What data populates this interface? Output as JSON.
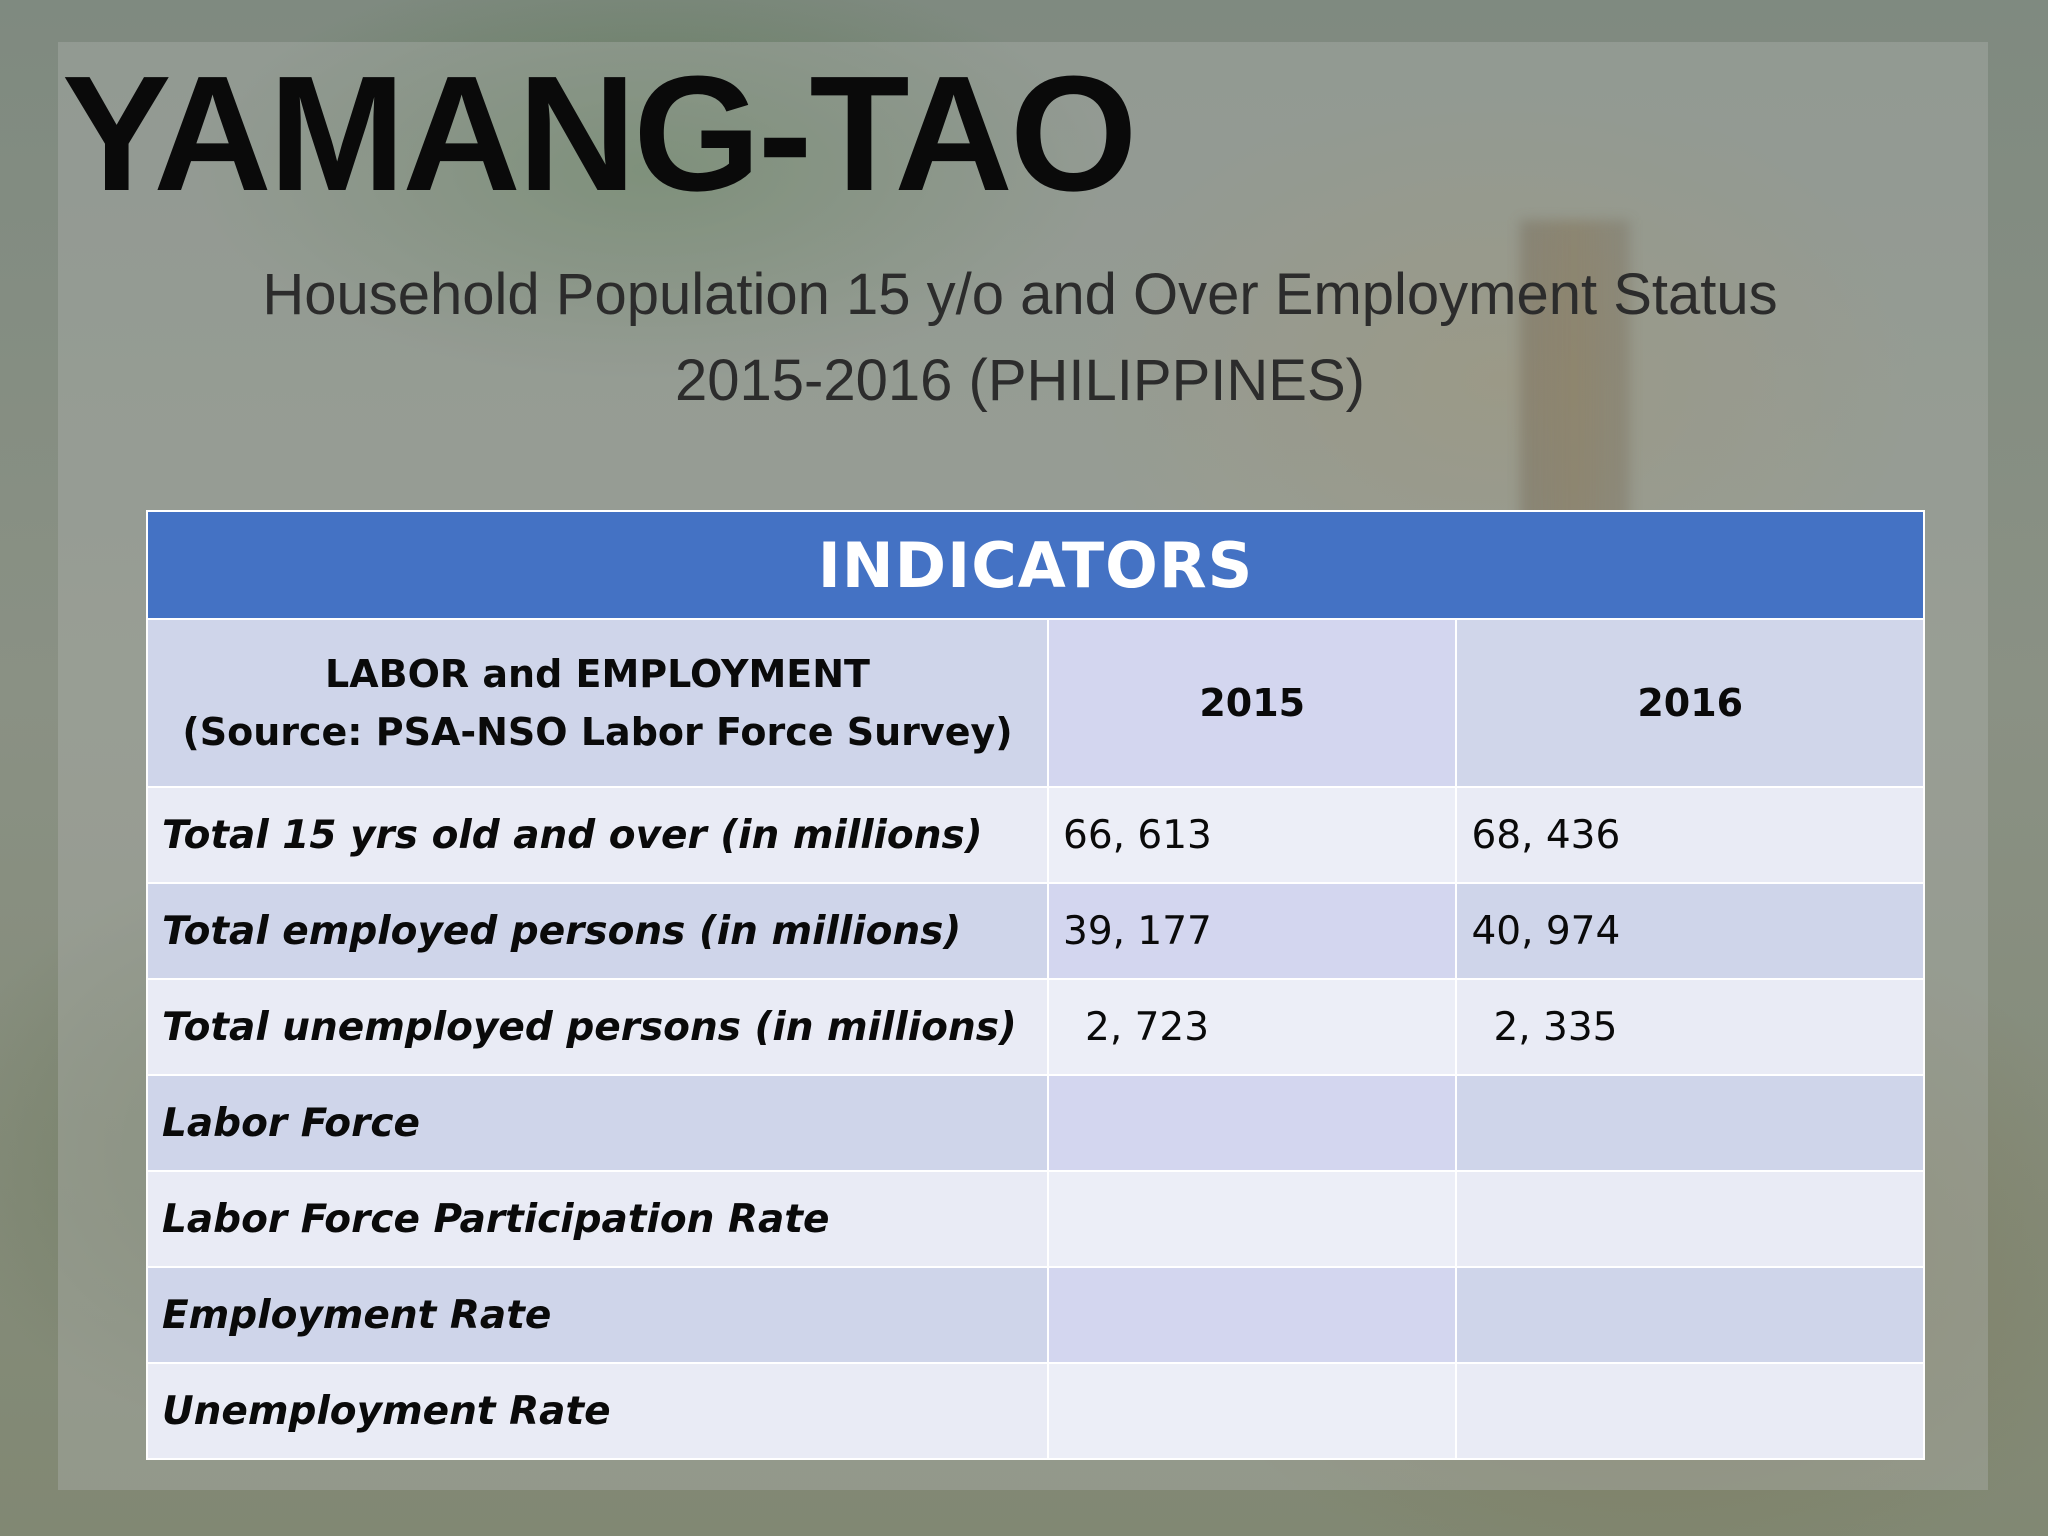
{
  "slide": {
    "title": "YAMANG-TAO",
    "subtitle_line1": "Household Population 15 y/o and Over Employment Status",
    "subtitle_line2": "2015-2016 (PHILIPPINES)"
  },
  "table": {
    "banner": "INDICATORS",
    "header": {
      "label_line1": "LABOR and EMPLOYMENT",
      "label_line2": "(Source: PSA-NSO Labor Force Survey)",
      "year1": "2015",
      "year2": "2016"
    },
    "rows": [
      {
        "label": "Total 15 yrs old and over (in millions)",
        "v2015": "66, 613",
        "v2016": "68, 436"
      },
      {
        "label": "Total employed persons (in millions)",
        "v2015": "39, 177",
        "v2016": "40, 974"
      },
      {
        "label": "Total unemployed persons (in millions)",
        "v2015": "2, 723",
        "v2016": "2, 335"
      },
      {
        "label": "Labor Force",
        "v2015": "",
        "v2016": ""
      },
      {
        "label": "Labor Force Participation Rate",
        "v2015": "",
        "v2016": ""
      },
      {
        "label": "Employment Rate",
        "v2015": "",
        "v2016": ""
      },
      {
        "label": "Unemployment Rate",
        "v2015": "",
        "v2016": ""
      }
    ]
  },
  "colors": {
    "banner_blue": "#4472c4",
    "row_light": "#e9ebf5",
    "row_dark": "#cfd5ea"
  }
}
